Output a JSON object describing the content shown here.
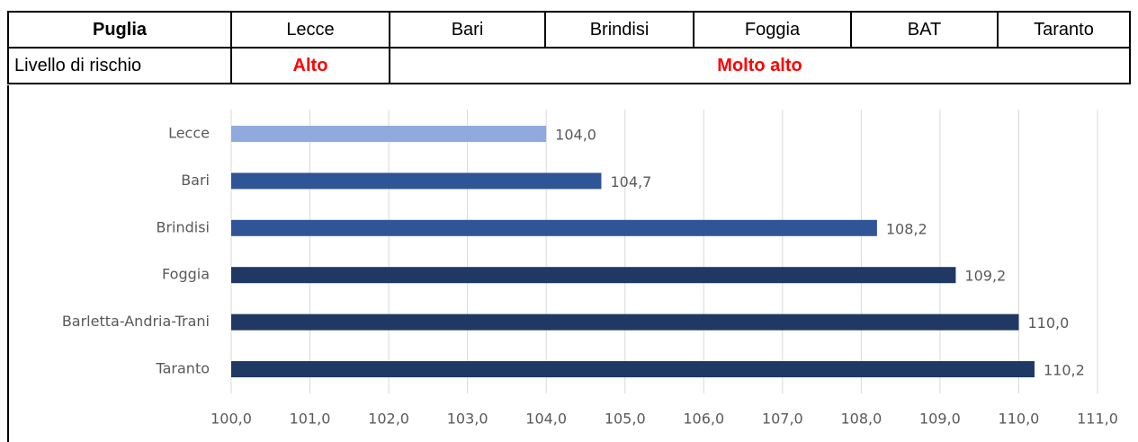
{
  "table": {
    "rows": [
      [
        "Puglia",
        "Lecce",
        "Bari",
        "Brindisi",
        "Foggia",
        "BAT",
        "Taranto"
      ],
      [
        "Livello di rischio",
        "Alto",
        "Molto alto"
      ]
    ]
  },
  "chart_data": {
    "type": "hbar",
    "categories": [
      "Lecce",
      "Bari",
      "Brindisi",
      "Foggia",
      "Barletta-Andria-Trani",
      "Taranto"
    ],
    "values": [
      104.0,
      104.7,
      108.2,
      109.2,
      110.0,
      110.2
    ],
    "value_labels": [
      "104,0",
      "104,7",
      "108,2",
      "109,2",
      "110,0",
      "110,2"
    ],
    "colors": [
      "#8faadc",
      "#2f5597",
      "#2f5597",
      "#203864",
      "#203864",
      "#203864"
    ],
    "xlim": [
      100,
      111
    ],
    "xticks": [
      {
        "value": 100,
        "label": "100,0"
      },
      {
        "value": 101,
        "label": "101,0"
      },
      {
        "value": 102,
        "label": "102,0"
      },
      {
        "value": 103,
        "label": "103,0"
      },
      {
        "value": 104,
        "label": "104,0"
      },
      {
        "value": 105,
        "label": "105,0"
      },
      {
        "value": 106,
        "label": "106,0"
      },
      {
        "value": 107,
        "label": "107,0"
      },
      {
        "value": 108,
        "label": "108,0"
      },
      {
        "value": 109,
        "label": "109,0"
      },
      {
        "value": 110,
        "label": "110,0"
      },
      {
        "value": 111,
        "label": "111,0"
      }
    ],
    "grid": true
  }
}
